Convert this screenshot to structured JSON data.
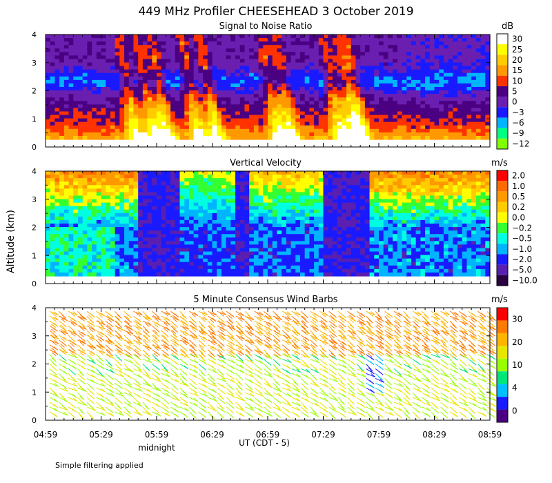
{
  "title": "449 MHz Profiler CHEESEHEAD  3 October 2019",
  "ylabel": "Altitude (km)",
  "xlabel": "UT  (CDT - 5)",
  "x_ticks": [
    "04:59",
    "05:29",
    "05:59",
    "06:29",
    "06:59",
    "07:29",
    "07:59",
    "08:29",
    "08:59"
  ],
  "x_annotation": "midnight",
  "footnote": "Simple filtering applied",
  "chart_data": [
    {
      "type": "heatmap",
      "title": "Signal to Noise Ratio",
      "unit": "dB",
      "ylim": [
        0,
        4
      ],
      "y_ticks": [
        "0",
        "1",
        "2",
        "3",
        "4"
      ],
      "colorbar_labels": [
        "30",
        "25",
        "20",
        "15",
        "10",
        "5",
        "0",
        "−3",
        "−6",
        "−9",
        "−12"
      ],
      "colorbar_colors": [
        "#ffffff",
        "#ffff00",
        "#ffcc00",
        "#ff9900",
        "#ff3300",
        "#4b0082",
        "#6a1fb0",
        "#1a1aff",
        "#00b4ff",
        "#00ff80",
        "#80ff00"
      ]
    },
    {
      "type": "heatmap",
      "title": "Vertical Velocity",
      "unit": "m/s",
      "ylim": [
        0,
        4
      ],
      "y_ticks": [
        "0",
        "1",
        "2",
        "3",
        "4"
      ],
      "colorbar_labels": [
        "2.0",
        "1.0",
        "0.5",
        "0.2",
        "0.0",
        "−0.2",
        "−0.5",
        "−1.0",
        "−2.0",
        "−5.0",
        "−10.0"
      ],
      "colorbar_colors": [
        "#ff0000",
        "#ff6a00",
        "#ff9900",
        "#ffcc00",
        "#ffff00",
        "#33ff33",
        "#00ffe0",
        "#00b4ff",
        "#1a1aff",
        "#5a1fb0",
        "#2a0040"
      ]
    },
    {
      "type": "scatter",
      "title": "5 Minute Consensus Wind Barbs",
      "unit": "m/s",
      "ylim": [
        0,
        4
      ],
      "y_ticks": [
        "0",
        "1",
        "2",
        "3",
        "4"
      ],
      "colorbar_labels": [
        "30",
        "20",
        "10",
        "4",
        "0"
      ],
      "colorbar_colors": [
        "#ff0000",
        "#ff7a00",
        "#ffb400",
        "#e6e600",
        "#99ff00",
        "#00e67a",
        "#00bfff",
        "#1a1aff",
        "#4b0082"
      ]
    }
  ]
}
